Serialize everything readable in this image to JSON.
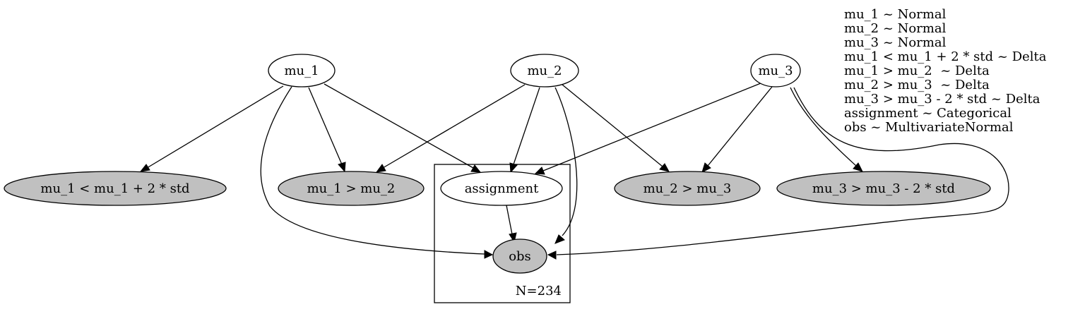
{
  "nodes": {
    "mu_1": {
      "label": "mu_1",
      "observed": false
    },
    "mu_2": {
      "label": "mu_2",
      "observed": false
    },
    "mu_3": {
      "label": "mu_3",
      "observed": false
    },
    "delta_1": {
      "label": "mu_1 < mu_1 + 2 * std",
      "observed": true
    },
    "delta_2": {
      "label": "mu_1 > mu_2",
      "observed": true
    },
    "assignment": {
      "label": "assignment",
      "observed": false
    },
    "delta_3": {
      "label": "mu_2 > mu_3",
      "observed": true
    },
    "delta_4": {
      "label": "mu_3 > mu_3 - 2 * std",
      "observed": true
    },
    "obs": {
      "label": "obs",
      "observed": true
    }
  },
  "plate": {
    "label": "N=234"
  },
  "legend": [
    "mu_1 ~ Normal",
    "mu_2 ~ Normal",
    "mu_3 ~ Normal",
    "mu_1 < mu_1 + 2 * std ~ Delta",
    "mu_1 > mu_2  ~ Delta",
    "mu_2 > mu_3  ~ Delta",
    "mu_3 > mu_3 - 2 * std ~ Delta",
    "assignment ~ Categorical",
    "obs ~ MultivariateNormal"
  ],
  "colors": {
    "observed_fill": "#c0c0c0",
    "latent_fill": "#ffffff"
  },
  "edges": [
    {
      "from": "mu_1",
      "to": "delta_1"
    },
    {
      "from": "mu_1",
      "to": "delta_2"
    },
    {
      "from": "mu_1",
      "to": "assignment"
    },
    {
      "from": "mu_1",
      "to": "obs"
    },
    {
      "from": "mu_2",
      "to": "delta_2"
    },
    {
      "from": "mu_2",
      "to": "assignment"
    },
    {
      "from": "mu_2",
      "to": "obs"
    },
    {
      "from": "mu_2",
      "to": "delta_3"
    },
    {
      "from": "mu_3",
      "to": "assignment"
    },
    {
      "from": "mu_3",
      "to": "delta_3"
    },
    {
      "from": "mu_3",
      "to": "delta_4"
    },
    {
      "from": "mu_3",
      "to": "obs"
    },
    {
      "from": "assignment",
      "to": "obs"
    }
  ]
}
